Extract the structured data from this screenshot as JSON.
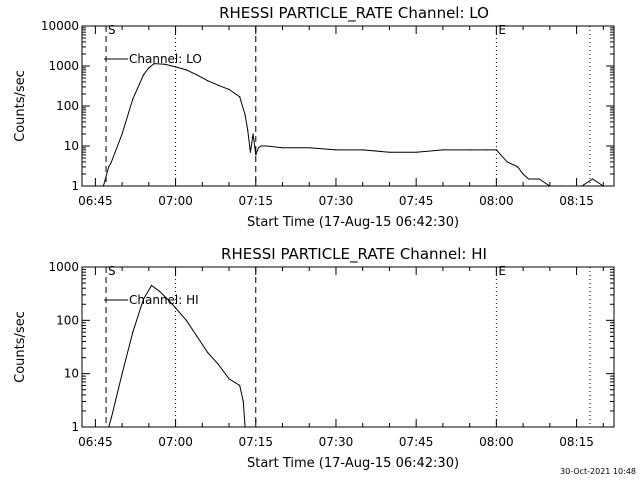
{
  "footer_timestamp": "30-Oct-2021 10:48",
  "chart_data": [
    {
      "type": "line",
      "title": "RHESSI PARTICLE_RATE Channel: LO",
      "xlabel": "Start Time (17-Aug-15 06:42:30)",
      "ylabel": "Counts/sec",
      "yscale": "log",
      "ylim": [
        1,
        10000
      ],
      "y_ticks": [
        1,
        10,
        100,
        1000,
        10000
      ],
      "y_tick_labels": [
        "1",
        "10",
        "100",
        "1000",
        "10000"
      ],
      "x_ticks": [
        "06:45",
        "07:00",
        "07:15",
        "07:30",
        "07:45",
        "08:00",
        "08:15"
      ],
      "xlim": [
        "06:42:30",
        "08:22:00"
      ],
      "legend": {
        "entry": "Channel: LO",
        "placement": "top-left"
      },
      "markers": [
        {
          "time": "06:47:00",
          "style": "dashed",
          "label": "S"
        },
        {
          "time": "07:15:00",
          "style": "dashed",
          "label": ""
        },
        {
          "time": "07:00:00",
          "style": "dotted",
          "label": ""
        },
        {
          "time": "08:00:00",
          "style": "dotted",
          "label": "E"
        },
        {
          "time": "08:17:30",
          "style": "dotted",
          "label": ""
        }
      ],
      "series": [
        {
          "x": [
            "06:42:30",
            "06:44:30",
            "06:46:30",
            "06:47:30",
            "06:48:00",
            "06:50:00",
            "06:52:00",
            "06:54:00",
            "06:55:00",
            "06:56:00",
            "06:58:00",
            "07:00:00",
            "07:02:00",
            "07:04:00",
            "07:06:00",
            "07:08:00",
            "07:10:00",
            "07:12:00",
            "07:13:00",
            "07:13:30",
            "07:14:00",
            "07:14:30",
            "07:15:00",
            "07:15:30",
            "07:16:00",
            "07:17:00",
            "07:20:00",
            "07:25:00",
            "07:30:00",
            "07:35:00",
            "07:40:00",
            "07:45:00",
            "07:50:00",
            "07:55:00",
            "07:58:00",
            "08:00:00",
            "08:02:00",
            "08:04:00",
            "08:05:00",
            "08:06:00",
            "08:08:00",
            "08:10:00",
            "08:12:00",
            "08:14:00",
            "08:16:00",
            "08:18:00",
            "08:20:00"
          ],
          "values": [
            1,
            1,
            1,
            3,
            4,
            20,
            150,
            600,
            900,
            1150,
            1100,
            950,
            800,
            600,
            430,
            330,
            260,
            170,
            60,
            25,
            7,
            20,
            6,
            9,
            10,
            10,
            9,
            9,
            8,
            8,
            7,
            7,
            8,
            8,
            8,
            8,
            4,
            3,
            2,
            1.5,
            1.5,
            1,
            1,
            1,
            1,
            1.5,
            1
          ]
        }
      ]
    },
    {
      "type": "line",
      "title": "RHESSI PARTICLE_RATE Channel: HI",
      "xlabel": "Start Time (17-Aug-15 06:42:30)",
      "ylabel": "Counts/sec",
      "yscale": "log",
      "ylim": [
        1,
        1000
      ],
      "y_ticks": [
        1,
        10,
        100,
        1000
      ],
      "y_tick_labels": [
        "1",
        "10",
        "100",
        "1000"
      ],
      "x_ticks": [
        "06:45",
        "07:00",
        "07:15",
        "07:30",
        "07:45",
        "08:00",
        "08:15"
      ],
      "xlim": [
        "06:42:30",
        "08:22:00"
      ],
      "legend": {
        "entry": "Channel: HI",
        "placement": "top-left"
      },
      "markers": [
        {
          "time": "06:47:00",
          "style": "dashed",
          "label": "S"
        },
        {
          "time": "07:15:00",
          "style": "dashed",
          "label": ""
        },
        {
          "time": "07:00:00",
          "style": "dotted",
          "label": ""
        },
        {
          "time": "08:00:00",
          "style": "dotted",
          "label": "E"
        },
        {
          "time": "08:17:30",
          "style": "dotted",
          "label": ""
        }
      ],
      "series": [
        {
          "x": [
            "06:47:30",
            "06:48:00",
            "06:50:00",
            "06:52:00",
            "06:54:00",
            "06:55:30",
            "06:57:00",
            "06:58:30",
            "07:00:00",
            "07:02:00",
            "07:04:00",
            "07:06:00",
            "07:08:00",
            "07:10:00",
            "07:12:00",
            "07:12:40",
            "07:13:00"
          ],
          "values": [
            1,
            1.5,
            10,
            60,
            250,
            450,
            350,
            250,
            170,
            100,
            50,
            25,
            15,
            8,
            6,
            3,
            1
          ]
        }
      ]
    }
  ]
}
